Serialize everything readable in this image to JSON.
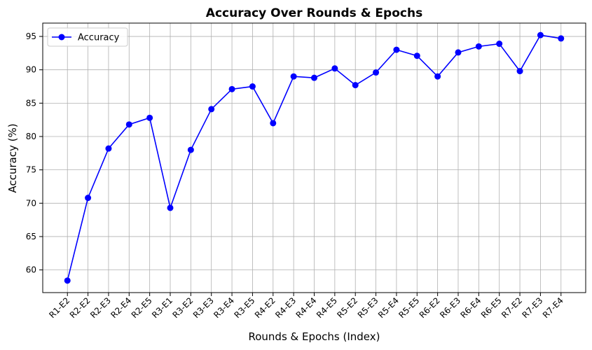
{
  "chart_data": {
    "type": "line",
    "title": "Accuracy Over Rounds & Epochs",
    "xlabel": "Rounds & Epochs (Index)",
    "ylabel": "Accuracy (%)",
    "categories": [
      "R1-E2",
      "R2-E2",
      "R2-E3",
      "R2-E4",
      "R2-E5",
      "R3-E1",
      "R3-E2",
      "R3-E3",
      "R3-E4",
      "R3-E5",
      "R4-E2",
      "R4-E3",
      "R4-E4",
      "R4-E5",
      "R5-E2",
      "R5-E3",
      "R5-E4",
      "R5-E5",
      "R6-E2",
      "R6-E3",
      "R6-E4",
      "R6-E5",
      "R7-E2",
      "R7-E3",
      "R7-E4"
    ],
    "series": [
      {
        "name": "Accuracy",
        "color": "#0000ff",
        "marker": "circle",
        "values": [
          58.4,
          70.8,
          78.2,
          81.8,
          82.8,
          69.3,
          78.0,
          84.1,
          87.1,
          87.5,
          82.0,
          89.0,
          88.8,
          90.2,
          87.7,
          89.6,
          93.0,
          92.1,
          89.0,
          92.6,
          93.5,
          93.9,
          89.8,
          95.2,
          94.7
        ]
      }
    ],
    "yticks": [
      60,
      65,
      70,
      75,
      80,
      85,
      90,
      95
    ],
    "ylim": [
      56.6,
      97.0
    ],
    "grid": true,
    "legend_position": "top-left"
  }
}
